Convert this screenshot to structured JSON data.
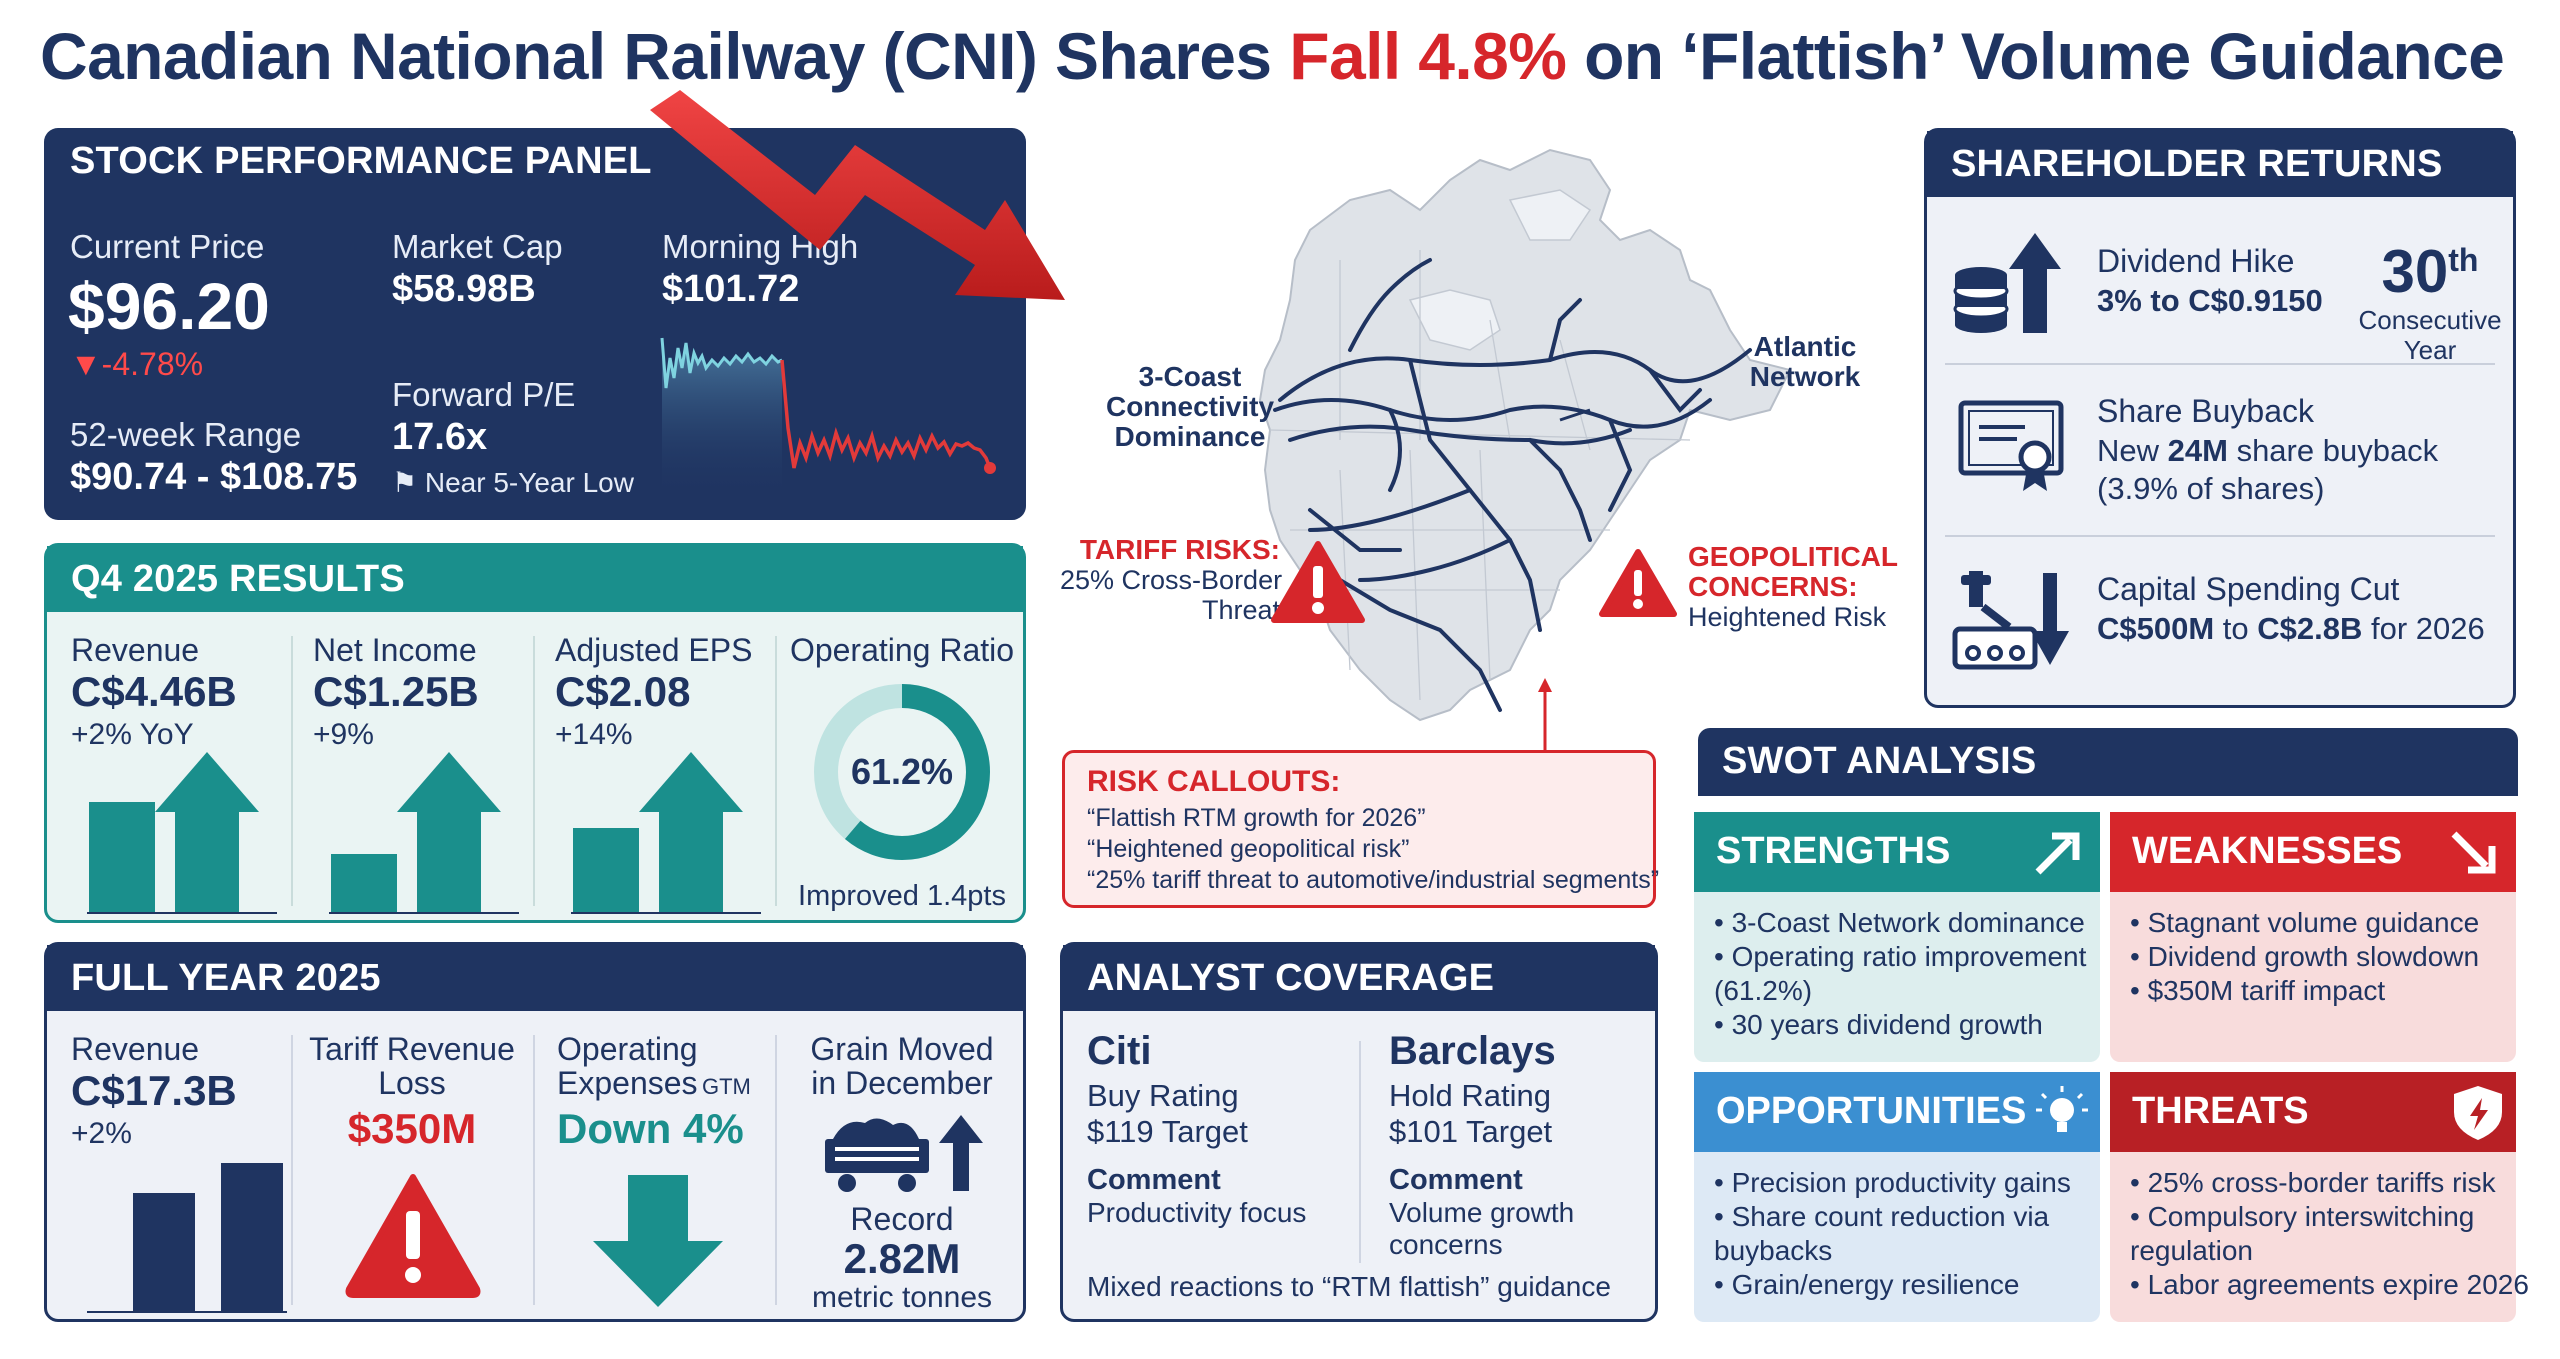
{
  "headline": {
    "part1": "Canadian National Railway (CNI) Shares ",
    "part2": "Fall 4.8%",
    "part3": " on ‘Flattish’ Volume Guidance"
  },
  "stock": {
    "title": "STOCK PERFORMANCE PANEL",
    "current_price_label": "Current Price",
    "current_price": "$96.20",
    "change": "▼-4.78%",
    "market_cap_label": "Market Cap",
    "market_cap": "$58.98B",
    "morning_high_label": "Morning High",
    "morning_high": "$101.72",
    "pe_label": "Forward P/E",
    "pe": "17.6x",
    "pe_note": "Near 5-Year Low",
    "range_label": "52-week Range",
    "range": "$90.74 - $108.75"
  },
  "q4": {
    "title": "Q4 2025 RESULTS",
    "metrics": [
      {
        "label": "Revenue",
        "value": "C$4.46B",
        "sub": "+2% YoY"
      },
      {
        "label": "Net Income",
        "value": "C$1.25B",
        "sub": "+9%"
      },
      {
        "label": "Adjusted EPS",
        "value": "C$2.08",
        "sub": "+14%"
      }
    ],
    "op_ratio_label": "Operating Ratio",
    "op_ratio_value": "61.2%",
    "op_ratio_pct": 61.2,
    "op_ratio_note": "Improved 1.4pts"
  },
  "fy": {
    "title": "FULL YEAR 2025",
    "revenue_label": "Revenue",
    "revenue_value": "C$17.3B",
    "revenue_sub": "+2%",
    "tariff_label_1": "Tariff Revenue",
    "tariff_label_2": "Loss",
    "tariff_value": "$350M",
    "opex_label_1": "Operating",
    "opex_label_2": "Expenses",
    "opex_tag": "GTM",
    "opex_value": "Down 4%",
    "grain_label_1": "Grain Moved",
    "grain_label_2": "in December",
    "grain_record": "Record",
    "grain_value": "2.82M",
    "grain_unit": "metric tonnes"
  },
  "map": {
    "coast_1": "3-Coast",
    "coast_2": "Connectivity",
    "coast_3": "Dominance",
    "atlantic_1": "Atlantic",
    "atlantic_2": "Network",
    "tariff_1": "TARIFF RISKS:",
    "tariff_2": "25% Cross-Border",
    "tariff_3": "Threat",
    "geo_1": "GEOPOLITICAL",
    "geo_2": "CONCERNS:",
    "geo_3": "Heightened Risk"
  },
  "risk": {
    "title": "RISK CALLOUTS:",
    "items": [
      "“Flattish RTM growth for 2026”",
      "“Heightened geopolitical risk”",
      "“25% tariff threat to automotive/industrial segments”"
    ]
  },
  "analyst": {
    "title": "ANALYST COVERAGE",
    "firms": [
      {
        "name": "Citi",
        "rating": "Buy Rating",
        "target": "$119 Target",
        "comment_label": "Comment",
        "comment_1": "Productivity focus",
        "comment_2": ""
      },
      {
        "name": "Barclays",
        "rating": "Hold Rating",
        "target": "$101 Target",
        "comment_label": "Comment",
        "comment_1": "Volume growth",
        "comment_2": "concerns"
      }
    ],
    "footer": "Mixed reactions to “RTM flattish” guidance"
  },
  "shareholder": {
    "title": "SHAREHOLDER RETURNS",
    "dividend_label": "Dividend Hike",
    "dividend_from": "3% to C$0.9150",
    "years_num": "30",
    "years_sup": "th",
    "years_1": "Consecutive",
    "years_2": "Year",
    "buyback_label": "Share Buyback",
    "buyback_pre": "New ",
    "buyback_bold": "24M",
    "buyback_post": " share buyback",
    "buyback_pct": "(3.9% of shares)",
    "capex_label": "Capital Spending Cut",
    "capex_bold_1": "C$500M",
    "capex_mid": " to ",
    "capex_bold_2": "C$2.8B",
    "capex_post": " for 2026"
  },
  "swot": {
    "title": "SWOT ANALYSIS",
    "strengths": {
      "title": "STRENGTHS",
      "items": [
        "• 3-Coast Network dominance",
        "• Operating ratio improvement",
        "   (61.2%)",
        "• 30 years dividend growth"
      ]
    },
    "weaknesses": {
      "title": "WEAKNESSES",
      "items": [
        "• Stagnant volume guidance",
        "• Dividend growth slowdown",
        "• $350M tariff impact"
      ]
    },
    "opportunities": {
      "title": "OPPORTUNITIES",
      "items": [
        "• Precision productivity gains",
        "• Share count reduction via",
        "   buybacks",
        "• Grain/energy resilience"
      ]
    },
    "threats": {
      "title": "THREATS",
      "items": [
        "• 25% cross-border tariffs risk",
        "• Compulsory interswitching",
        "   regulation",
        "• Labor agreements expire 2026"
      ]
    }
  },
  "colors": {
    "navy": "#1f3461",
    "teal": "#1a8f8c",
    "red": "#d6262b",
    "chart_up": "#7fd3e0",
    "chart_down": "#e23a3a"
  }
}
